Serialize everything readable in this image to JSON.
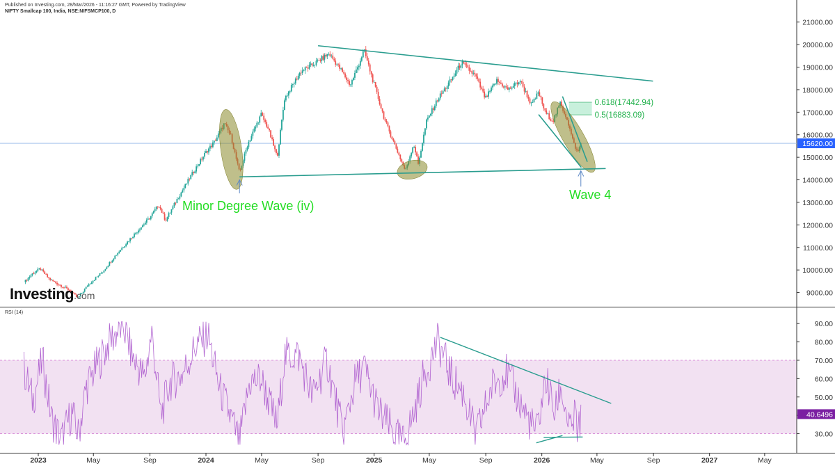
{
  "header": {
    "published": "Published on Investing.com, 28/Mar/2026 - 11:16:27 GMT, Powered by TradingView",
    "symbol": "NIFTY Smallcap 100, India, NSE:NIFSMCP100, D"
  },
  "logo": {
    "brand": "Investing",
    "suffix": ".com"
  },
  "chart_data": [
    {
      "type": "candlestick",
      "title": "NIFTY Smallcap 100, India, NSE:NIFSMCP100, D",
      "y_ticks": [
        9000,
        10000,
        11000,
        12000,
        13000,
        14000,
        15000,
        16000,
        17000,
        18000,
        19000,
        20000,
        21000
      ],
      "ylim": [
        8400,
        21300
      ],
      "last_price": 15620.0,
      "last_price_label": "15620.00",
      "x_tick_labels": [
        "2023",
        "May",
        "Sep",
        "2024",
        "May",
        "Sep",
        "2025",
        "May",
        "Sep",
        "2026",
        "May",
        "Sep",
        "2027",
        "May"
      ],
      "price_path": [
        [
          "2022-12-01",
          9450
        ],
        [
          "2022-12-20",
          9850
        ],
        [
          "2023-01-05",
          10050
        ],
        [
          "2023-01-25",
          9600
        ],
        [
          "2023-02-15",
          9350
        ],
        [
          "2023-03-10",
          9100
        ],
        [
          "2023-03-28",
          8750
        ],
        [
          "2023-04-20",
          9350
        ],
        [
          "2023-05-20",
          9900
        ],
        [
          "2023-06-20",
          10700
        ],
        [
          "2023-07-25",
          11500
        ],
        [
          "2023-08-31",
          12300
        ],
        [
          "2023-09-20",
          12900
        ],
        [
          "2023-10-05",
          12200
        ],
        [
          "2023-11-01",
          13200
        ],
        [
          "2023-11-30",
          14200
        ],
        [
          "2023-12-31",
          15200
        ],
        [
          "2024-01-20",
          15700
        ],
        [
          "2024-02-10",
          16500
        ],
        [
          "2024-02-25",
          15900
        ],
        [
          "2024-03-14",
          14300
        ],
        [
          "2024-04-01",
          15600
        ],
        [
          "2024-04-30",
          16900
        ],
        [
          "2024-05-15",
          16300
        ],
        [
          "2024-06-04",
          15000
        ],
        [
          "2024-06-20",
          17600
        ],
        [
          "2024-07-25",
          18800
        ],
        [
          "2024-08-20",
          19100
        ],
        [
          "2024-09-25",
          19600
        ],
        [
          "2024-10-20",
          18900
        ],
        [
          "2024-11-10",
          18200
        ],
        [
          "2024-11-30",
          19200
        ],
        [
          "2024-12-10",
          19750
        ],
        [
          "2024-12-31",
          18300
        ],
        [
          "2025-01-25",
          16600
        ],
        [
          "2025-02-20",
          15300
        ],
        [
          "2025-03-10",
          14400
        ],
        [
          "2025-03-28",
          15600
        ],
        [
          "2025-04-07",
          14700
        ],
        [
          "2025-04-25",
          16600
        ],
        [
          "2025-05-20",
          17600
        ],
        [
          "2025-06-20",
          18500
        ],
        [
          "2025-07-10",
          19200
        ],
        [
          "2025-08-10",
          18600
        ],
        [
          "2025-08-31",
          17600
        ],
        [
          "2025-09-25",
          18400
        ],
        [
          "2025-10-20",
          18000
        ],
        [
          "2025-11-15",
          18400
        ],
        [
          "2025-12-10",
          17300
        ],
        [
          "2025-12-25",
          17900
        ],
        [
          "2026-01-08",
          17000
        ],
        [
          "2026-01-25",
          16600
        ],
        [
          "2026-02-10",
          17400
        ],
        [
          "2026-02-25",
          16700
        ],
        [
          "2026-03-10",
          15700
        ],
        [
          "2026-03-20",
          15200
        ],
        [
          "2026-03-27",
          15620
        ]
      ],
      "trendlines": [
        {
          "role": "upper",
          "from": [
            "2024-09-01",
            19950
          ],
          "to": [
            "2026-08-31",
            18380
          ]
        },
        {
          "role": "lower",
          "from": [
            "2024-03-14",
            14130
          ],
          "to": [
            "2026-05-20",
            14500
          ]
        },
        {
          "role": "channel",
          "from": [
            "2025-12-25",
            16900
          ],
          "to": [
            "2026-03-28",
            14550
          ]
        },
        {
          "role": "channel",
          "from": [
            "2026-02-15",
            17700
          ],
          "to": [
            "2026-04-10",
            14800
          ]
        }
      ],
      "fib_levels": [
        {
          "label": "0.618(17442.94)",
          "value": 17442.94
        },
        {
          "label": "0.5(16883.09)",
          "value": 16883.09
        }
      ],
      "annotations": [
        {
          "text": "Minor Degree Wave (iv)",
          "color": "#22dd22"
        },
        {
          "text": "Wave 4",
          "color": "#22dd22"
        }
      ],
      "highlights": [
        {
          "center": [
            "2024-02-25",
            15350
          ]
        },
        {
          "center": [
            "2025-03-25",
            14450
          ]
        },
        {
          "center": [
            "2026-03-10",
            15900
          ]
        }
      ],
      "colors": {
        "up": "#26a69a",
        "down": "#ef5350",
        "trendline": "#2a9d8f",
        "highlight": "#8b8b2c",
        "last_price": "#2962ff",
        "fib_zone": "#c8f0dc"
      }
    },
    {
      "type": "line",
      "title": "RSI (14)",
      "y_ticks": [
        30,
        40,
        50,
        60,
        70,
        80,
        90
      ],
      "ylim": [
        23,
        95
      ],
      "band": [
        30,
        70
      ],
      "last_value": 40.6496,
      "last_value_label": "40.6496",
      "rsi_path": [
        [
          "2022-12-01",
          65
        ],
        [
          "2022-12-20",
          48
        ],
        [
          "2023-01-10",
          70
        ],
        [
          "2023-01-30",
          38
        ],
        [
          "2023-02-20",
          26
        ],
        [
          "2023-03-15",
          42
        ],
        [
          "2023-03-29",
          29
        ],
        [
          "2023-04-15",
          55
        ],
        [
          "2023-05-10",
          68
        ],
        [
          "2023-06-10",
          82
        ],
        [
          "2023-07-05",
          89
        ],
        [
          "2023-07-25",
          72
        ],
        [
          "2023-08-20",
          60
        ],
        [
          "2023-09-05",
          85
        ],
        [
          "2023-09-25",
          40
        ],
        [
          "2023-10-15",
          58
        ],
        [
          "2023-11-10",
          62
        ],
        [
          "2023-12-10",
          78
        ],
        [
          "2024-01-05",
          84
        ],
        [
          "2024-01-30",
          55
        ],
        [
          "2024-02-25",
          38
        ],
        [
          "2024-03-14",
          25
        ],
        [
          "2024-04-05",
          58
        ],
        [
          "2024-04-30",
          60
        ],
        [
          "2024-06-04",
          34
        ],
        [
          "2024-06-20",
          72
        ],
        [
          "2024-07-20",
          73
        ],
        [
          "2024-08-20",
          50
        ],
        [
          "2024-09-20",
          70
        ],
        [
          "2024-10-25",
          30
        ],
        [
          "2024-11-20",
          58
        ],
        [
          "2024-12-10",
          66
        ],
        [
          "2025-01-10",
          42
        ],
        [
          "2025-02-20",
          28
        ],
        [
          "2025-03-05",
          25
        ],
        [
          "2025-03-25",
          38
        ],
        [
          "2025-04-20",
          62
        ],
        [
          "2025-05-20",
          80
        ],
        [
          "2025-06-20",
          60
        ],
        [
          "2025-07-15",
          52
        ],
        [
          "2025-08-10",
          28
        ],
        [
          "2025-09-15",
          56
        ],
        [
          "2025-10-15",
          64
        ],
        [
          "2025-11-20",
          44
        ],
        [
          "2025-12-20",
          30
        ],
        [
          "2026-01-10",
          60
        ],
        [
          "2026-01-30",
          40
        ],
        [
          "2026-02-10",
          56
        ],
        [
          "2026-03-05",
          30
        ],
        [
          "2026-03-15",
          42
        ],
        [
          "2026-03-20",
          27
        ],
        [
          "2026-03-27",
          40.65
        ]
      ],
      "trendlines": [
        {
          "role": "upper",
          "from": [
            "2025-05-25",
            82.5
          ],
          "to": [
            "2026-06-01",
            46.5
          ]
        },
        {
          "role": "lower",
          "from": [
            "2025-12-20",
            25
          ],
          "to": [
            "2026-02-15",
            29
          ]
        },
        {
          "role": "lower",
          "from": [
            "2026-01-05",
            28
          ],
          "to": [
            "2026-03-31",
            28.2
          ]
        }
      ],
      "colors": {
        "line": "#b266d1",
        "band_fill": "#f2e1f2",
        "last_value": "#7b1fa2",
        "trendline": "#2a9d8f"
      }
    }
  ]
}
